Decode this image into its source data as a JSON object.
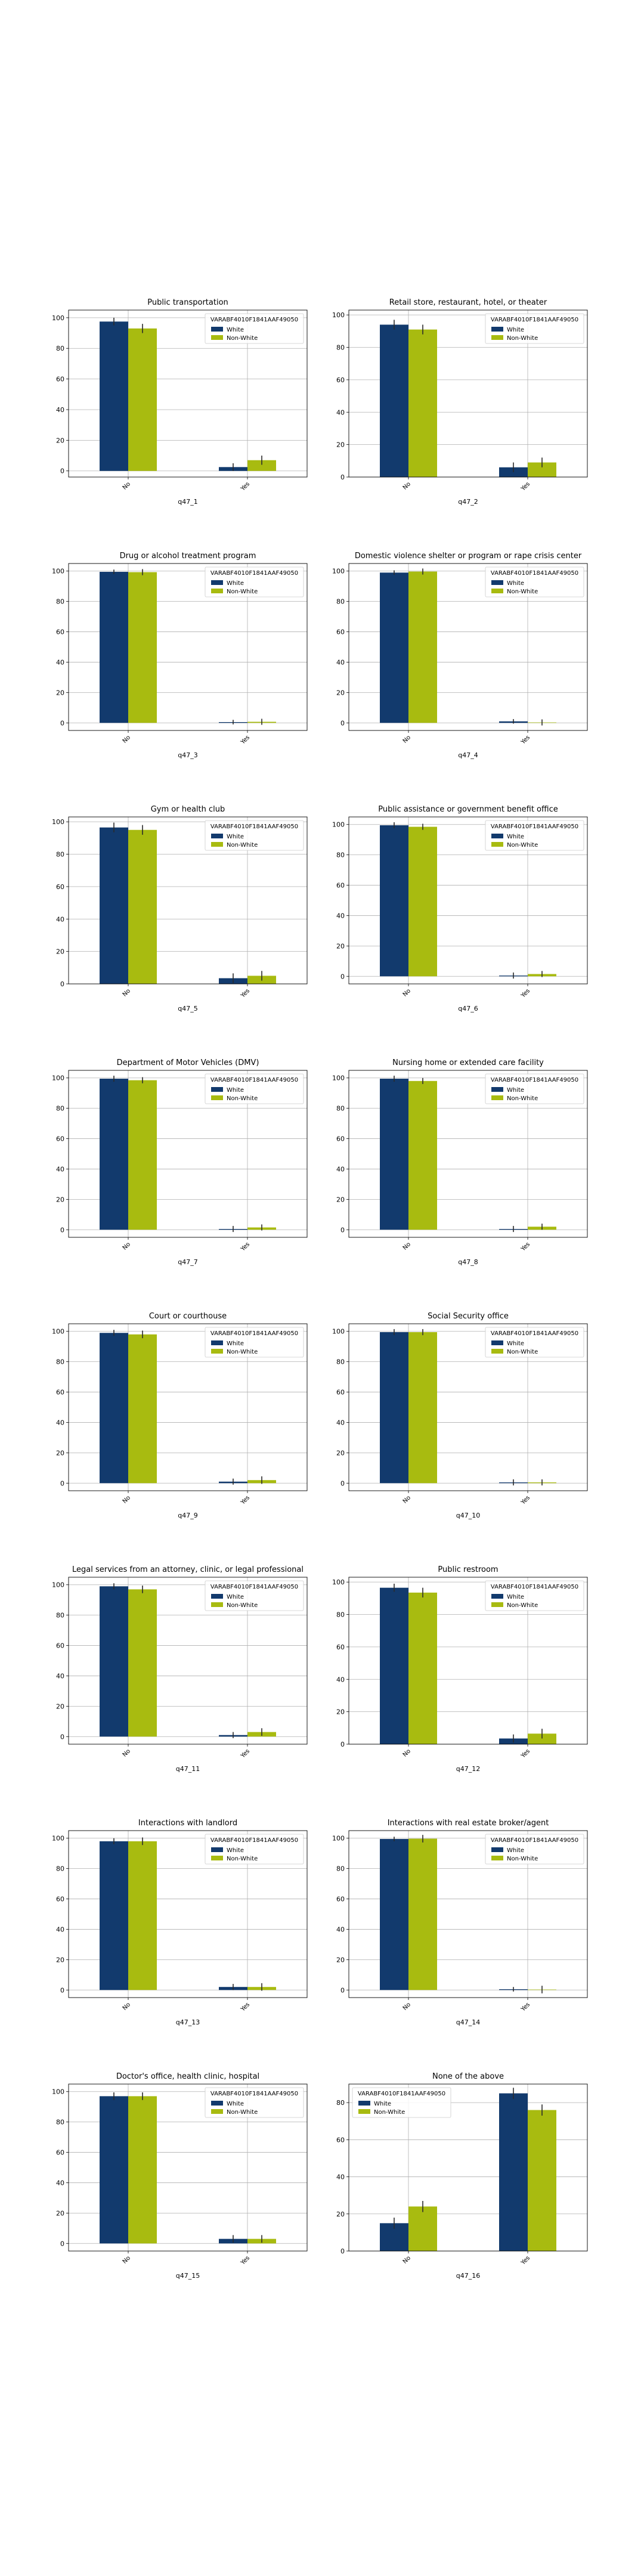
{
  "colors": {
    "white_series": "#123a6d",
    "nonwhite_series": "#a8bb10",
    "grid": "#b0b0b0",
    "errorbar": "#2a2a2a"
  },
  "legend_title": "VARABF4010F1841AAF49050",
  "chart_data": [
    {
      "type": "bar",
      "title": "Public transportation",
      "xlabel": "q47_1",
      "categories": [
        "No",
        "Yes"
      ],
      "ylim": [
        -4,
        105
      ],
      "yticks": [
        0,
        20,
        40,
        60,
        80,
        100
      ],
      "legend": "top-right",
      "series": [
        {
          "name": "White",
          "values": [
            97.5,
            2.5
          ],
          "err": [
            2.5,
            2.5
          ]
        },
        {
          "name": "Non-White",
          "values": [
            93,
            7
          ],
          "err": [
            3,
            3
          ]
        }
      ]
    },
    {
      "type": "bar",
      "title": "Retail store, restaurant, hotel, or theater",
      "xlabel": "q47_2",
      "categories": [
        "No",
        "Yes"
      ],
      "ylim": [
        0,
        103
      ],
      "yticks": [
        0,
        20,
        40,
        60,
        80,
        100
      ],
      "legend": "top-right",
      "series": [
        {
          "name": "White",
          "values": [
            94,
            6
          ],
          "err": [
            3,
            3
          ]
        },
        {
          "name": "Non-White",
          "values": [
            91,
            9
          ],
          "err": [
            3,
            3
          ]
        }
      ]
    },
    {
      "type": "bar",
      "title": "Drug or alcohol treatment program",
      "xlabel": "q47_3",
      "categories": [
        "No",
        "Yes"
      ],
      "ylim": [
        -5,
        105
      ],
      "yticks": [
        0,
        20,
        40,
        60,
        80,
        100
      ],
      "legend": "top-right",
      "series": [
        {
          "name": "White",
          "values": [
            99.5,
            0.5
          ],
          "err": [
            1.5,
            1.5
          ]
        },
        {
          "name": "Non-White",
          "values": [
            99.3,
            0.7
          ],
          "err": [
            2,
            2
          ]
        }
      ]
    },
    {
      "type": "bar",
      "title": "Domestic violence shelter or program or rape crisis center",
      "xlabel": "q47_4",
      "categories": [
        "No",
        "Yes"
      ],
      "ylim": [
        -5,
        105
      ],
      "yticks": [
        0,
        20,
        40,
        60,
        80,
        100
      ],
      "legend": "top-right",
      "series": [
        {
          "name": "White",
          "values": [
            99,
            1
          ],
          "err": [
            1.5,
            1.5
          ]
        },
        {
          "name": "Non-White",
          "values": [
            99.7,
            0.3
          ],
          "err": [
            2,
            2
          ]
        }
      ]
    },
    {
      "type": "bar",
      "title": "Gym or health club",
      "xlabel": "q47_5",
      "categories": [
        "No",
        "Yes"
      ],
      "ylim": [
        0,
        103
      ],
      "yticks": [
        0,
        20,
        40,
        60,
        80,
        100
      ],
      "legend": "top-right",
      "series": [
        {
          "name": "White",
          "values": [
            96.5,
            3.5
          ],
          "err": [
            3,
            3
          ]
        },
        {
          "name": "Non-White",
          "values": [
            95,
            5
          ],
          "err": [
            3,
            3
          ]
        }
      ]
    },
    {
      "type": "bar",
      "title": "Public assistance or government benefit office",
      "xlabel": "q47_6",
      "categories": [
        "No",
        "Yes"
      ],
      "ylim": [
        -5,
        105
      ],
      "yticks": [
        0,
        20,
        40,
        60,
        80,
        100
      ],
      "legend": "top-right",
      "series": [
        {
          "name": "White",
          "values": [
            99.5,
            0.5
          ],
          "err": [
            2,
            2
          ]
        },
        {
          "name": "Non-White",
          "values": [
            98.5,
            1.5
          ],
          "err": [
            2,
            2
          ]
        }
      ]
    },
    {
      "type": "bar",
      "title": "Department of Motor Vehicles (DMV)",
      "xlabel": "q47_7",
      "categories": [
        "No",
        "Yes"
      ],
      "ylim": [
        -5,
        105
      ],
      "yticks": [
        0,
        20,
        40,
        60,
        80,
        100
      ],
      "legend": "top-right",
      "series": [
        {
          "name": "White",
          "values": [
            99.5,
            0.5
          ],
          "err": [
            2,
            2
          ]
        },
        {
          "name": "Non-White",
          "values": [
            98.5,
            1.5
          ],
          "err": [
            2,
            2
          ]
        }
      ]
    },
    {
      "type": "bar",
      "title": "Nursing home or extended care facility",
      "xlabel": "q47_8",
      "categories": [
        "No",
        "Yes"
      ],
      "ylim": [
        -5,
        105
      ],
      "yticks": [
        0,
        20,
        40,
        60,
        80,
        100
      ],
      "legend": "top-right",
      "series": [
        {
          "name": "White",
          "values": [
            99.5,
            0.5
          ],
          "err": [
            2,
            2
          ]
        },
        {
          "name": "Non-White",
          "values": [
            98,
            2
          ],
          "err": [
            2,
            2
          ]
        }
      ]
    },
    {
      "type": "bar",
      "title": "Court or courthouse",
      "xlabel": "q47_9",
      "categories": [
        "No",
        "Yes"
      ],
      "ylim": [
        -5,
        105
      ],
      "yticks": [
        0,
        20,
        40,
        60,
        80,
        100
      ],
      "legend": "top-right",
      "series": [
        {
          "name": "White",
          "values": [
            99,
            1
          ],
          "err": [
            2,
            2
          ]
        },
        {
          "name": "Non-White",
          "values": [
            98,
            2
          ],
          "err": [
            2.5,
            2.5
          ]
        }
      ]
    },
    {
      "type": "bar",
      "title": "Social Security office",
      "xlabel": "q47_10",
      "categories": [
        "No",
        "Yes"
      ],
      "ylim": [
        -5,
        105
      ],
      "yticks": [
        0,
        20,
        40,
        60,
        80,
        100
      ],
      "legend": "top-right",
      "series": [
        {
          "name": "White",
          "values": [
            99.5,
            0.5
          ],
          "err": [
            2,
            2
          ]
        },
        {
          "name": "Non-White",
          "values": [
            99.5,
            0.5
          ],
          "err": [
            2,
            2
          ]
        }
      ]
    },
    {
      "type": "bar",
      "title": "Legal services from an attorney, clinic, or legal professional",
      "xlabel": "q47_11",
      "categories": [
        "No",
        "Yes"
      ],
      "ylim": [
        -5,
        105
      ],
      "yticks": [
        0,
        20,
        40,
        60,
        80,
        100
      ],
      "legend": "top-right",
      "series": [
        {
          "name": "White",
          "values": [
            99,
            1
          ],
          "err": [
            2,
            2
          ]
        },
        {
          "name": "Non-White",
          "values": [
            97,
            3
          ],
          "err": [
            2.5,
            2.5
          ]
        }
      ]
    },
    {
      "type": "bar",
      "title": "Public restroom",
      "xlabel": "q47_12",
      "categories": [
        "No",
        "Yes"
      ],
      "ylim": [
        0,
        103
      ],
      "yticks": [
        0,
        20,
        40,
        60,
        80,
        100
      ],
      "legend": "top-right",
      "series": [
        {
          "name": "White",
          "values": [
            96.5,
            3.5
          ],
          "err": [
            2.5,
            2.5
          ]
        },
        {
          "name": "Non-White",
          "values": [
            93.5,
            6.5
          ],
          "err": [
            3,
            3
          ]
        }
      ]
    },
    {
      "type": "bar",
      "title": "Interactions with landlord",
      "xlabel": "q47_13",
      "categories": [
        "No",
        "Yes"
      ],
      "ylim": [
        -5,
        105
      ],
      "yticks": [
        0,
        20,
        40,
        60,
        80,
        100
      ],
      "legend": "top-right",
      "series": [
        {
          "name": "White",
          "values": [
            98,
            2
          ],
          "err": [
            2,
            2
          ]
        },
        {
          "name": "Non-White",
          "values": [
            98,
            2
          ],
          "err": [
            2.5,
            2.5
          ]
        }
      ]
    },
    {
      "type": "bar",
      "title": "Interactions with real estate broker/agent",
      "xlabel": "q47_14",
      "categories": [
        "No",
        "Yes"
      ],
      "ylim": [
        -5,
        105
      ],
      "yticks": [
        0,
        20,
        40,
        60,
        80,
        100
      ],
      "legend": "top-right",
      "series": [
        {
          "name": "White",
          "values": [
            99.5,
            0.5
          ],
          "err": [
            1.5,
            1.5
          ]
        },
        {
          "name": "Non-White",
          "values": [
            99.7,
            0.3
          ],
          "err": [
            2.5,
            2.5
          ]
        }
      ]
    },
    {
      "type": "bar",
      "title": "Doctor's office, health clinic, hospital",
      "xlabel": "q47_15",
      "categories": [
        "No",
        "Yes"
      ],
      "ylim": [
        -5,
        105
      ],
      "yticks": [
        0,
        20,
        40,
        60,
        80,
        100
      ],
      "legend": "top-right",
      "series": [
        {
          "name": "White",
          "values": [
            97,
            3
          ],
          "err": [
            2.5,
            2.5
          ]
        },
        {
          "name": "Non-White",
          "values": [
            97,
            3
          ],
          "err": [
            2.5,
            2.5
          ]
        }
      ]
    },
    {
      "type": "bar",
      "title": "None of the above",
      "xlabel": "q47_16",
      "categories": [
        "No",
        "Yes"
      ],
      "ylim": [
        0,
        90
      ],
      "yticks": [
        0,
        20,
        40,
        60,
        80
      ],
      "legend": "top-left",
      "series": [
        {
          "name": "White",
          "values": [
            15,
            85
          ],
          "err": [
            3,
            3
          ]
        },
        {
          "name": "Non-White",
          "values": [
            24,
            76
          ],
          "err": [
            3,
            3
          ]
        }
      ]
    }
  ]
}
